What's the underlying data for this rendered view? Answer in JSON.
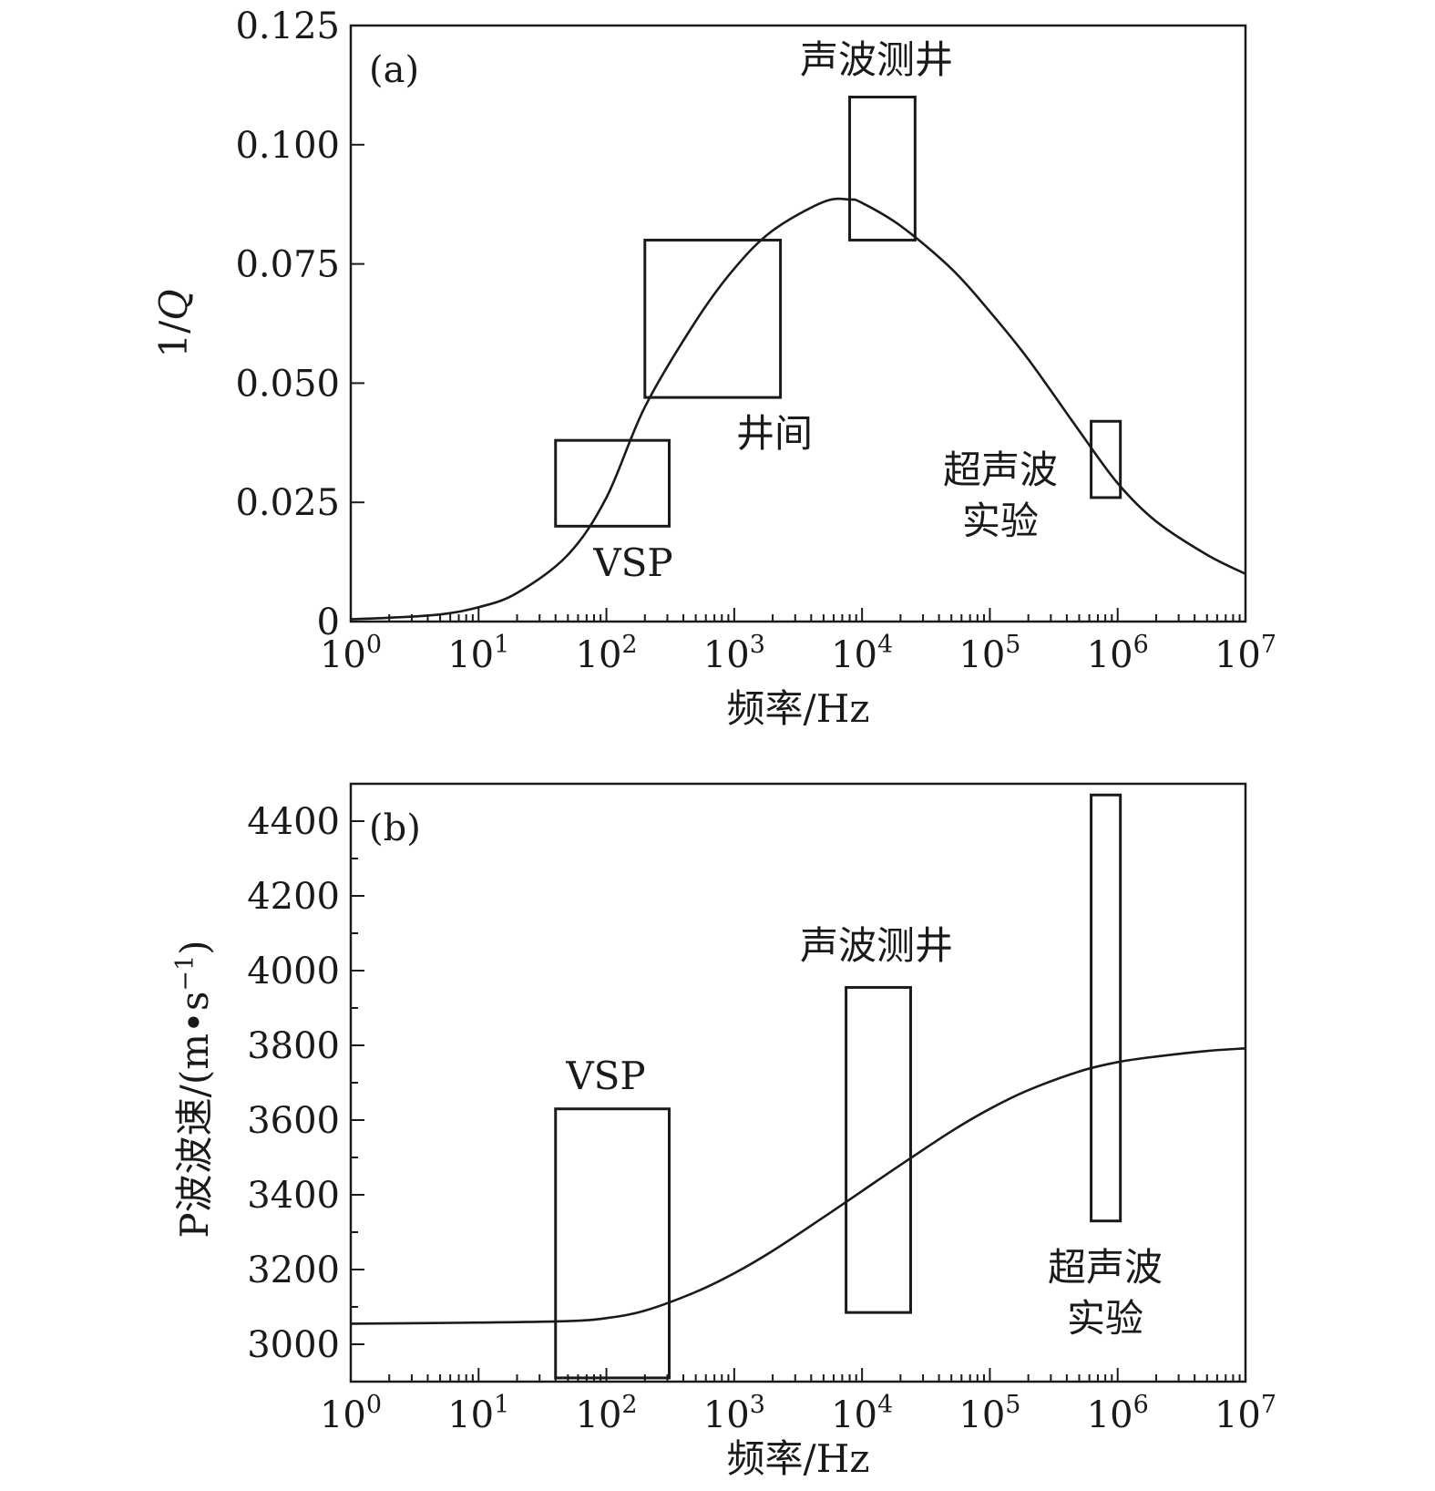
{
  "chart_data": [
    {
      "type": "line",
      "panel_label": "(a)",
      "xlabel": "频率/Hz",
      "ylabel": "1/Q",
      "xscale": "log",
      "xlim": [
        1,
        10000000
      ],
      "ylim": [
        0,
        0.125
      ],
      "x_ticks": [
        {
          "base": "10",
          "exp": "0"
        },
        {
          "base": "10",
          "exp": "1"
        },
        {
          "base": "10",
          "exp": "2"
        },
        {
          "base": "10",
          "exp": "3"
        },
        {
          "base": "10",
          "exp": "4"
        },
        {
          "base": "10",
          "exp": "5"
        },
        {
          "base": "10",
          "exp": "6"
        },
        {
          "base": "10",
          "exp": "7"
        }
      ],
      "y_ticks": [
        {
          "value": 0,
          "label": "0"
        },
        {
          "value": 0.025,
          "label": "0.025"
        },
        {
          "value": 0.05,
          "label": "0.050"
        },
        {
          "value": 0.075,
          "label": "0.075"
        },
        {
          "value": 0.1,
          "label": "0.100"
        },
        {
          "value": 0.125,
          "label": "0.125"
        }
      ],
      "grid": false,
      "curve": {
        "x": [
          1,
          2,
          5,
          10,
          20,
          50,
          100,
          200,
          500,
          1000,
          2000,
          5000,
          8000,
          10000,
          20000,
          50000,
          100000,
          200000,
          500000,
          1000000,
          2000000,
          5000000,
          10000000
        ],
        "y": [
          0.0005,
          0.0008,
          0.0015,
          0.003,
          0.006,
          0.014,
          0.026,
          0.045,
          0.063,
          0.074,
          0.082,
          0.088,
          0.0885,
          0.0878,
          0.083,
          0.074,
          0.065,
          0.055,
          0.04,
          0.029,
          0.021,
          0.014,
          0.01
        ]
      },
      "boxes": [
        {
          "label_lines": [
            "VSP"
          ],
          "x_range": [
            40,
            310
          ],
          "y_range": [
            0.02,
            0.038
          ]
        },
        {
          "label_lines": [
            "井间"
          ],
          "x_range": [
            200,
            2300
          ],
          "y_range": [
            0.047,
            0.08
          ]
        },
        {
          "label_lines": [
            "声波测井"
          ],
          "x_range": [
            8000,
            26000
          ],
          "y_range": [
            0.08,
            0.11
          ]
        },
        {
          "label_lines": [
            "超声波",
            "实验"
          ],
          "x_range": [
            620000,
            1050000
          ],
          "y_range": [
            0.026,
            0.042
          ]
        }
      ]
    },
    {
      "type": "line",
      "panel_label": "(b)",
      "xlabel": "频率/Hz",
      "ylabel": "P波波速/(m•s",
      "ylabel_sup": "−1",
      "ylabel_end": ")",
      "xscale": "log",
      "xlim": [
        1,
        10000000
      ],
      "ylim": [
        2900,
        4500
      ],
      "x_ticks": [
        {
          "base": "10",
          "exp": "0"
        },
        {
          "base": "10",
          "exp": "1"
        },
        {
          "base": "10",
          "exp": "2"
        },
        {
          "base": "10",
          "exp": "3"
        },
        {
          "base": "10",
          "exp": "4"
        },
        {
          "base": "10",
          "exp": "5"
        },
        {
          "base": "10",
          "exp": "6"
        },
        {
          "base": "10",
          "exp": "7"
        }
      ],
      "y_ticks": [
        {
          "value": 3000,
          "label": "3000"
        },
        {
          "value": 3200,
          "label": "3200"
        },
        {
          "value": 3400,
          "label": "3400"
        },
        {
          "value": 3600,
          "label": "3600"
        },
        {
          "value": 3800,
          "label": "3800"
        },
        {
          "value": 4000,
          "label": "4000"
        },
        {
          "value": 4200,
          "label": "4200"
        },
        {
          "value": 4400,
          "label": "4400"
        }
      ],
      "grid": false,
      "curve": {
        "x": [
          1,
          10,
          50,
          100,
          200,
          500,
          1000,
          2000,
          5000,
          10000,
          20000,
          50000,
          100000,
          200000,
          500000,
          1000000,
          2000000,
          5000000,
          10000000
        ],
        "y": [
          3055,
          3058,
          3062,
          3070,
          3090,
          3140,
          3190,
          3250,
          3340,
          3410,
          3480,
          3570,
          3630,
          3680,
          3730,
          3755,
          3770,
          3785,
          3792
        ]
      },
      "boxes": [
        {
          "label_lines": [
            "VSP"
          ],
          "x_range": [
            40,
            310
          ],
          "y_range": [
            2910,
            3630
          ]
        },
        {
          "label_lines": [
            "声波测井"
          ],
          "x_range": [
            7500,
            24000
          ],
          "y_range": [
            3085,
            3955
          ]
        },
        {
          "label_lines": [
            "超声波",
            "实验"
          ],
          "x_range": [
            620000,
            1050000
          ],
          "y_range": [
            3330,
            4470
          ]
        }
      ]
    }
  ]
}
